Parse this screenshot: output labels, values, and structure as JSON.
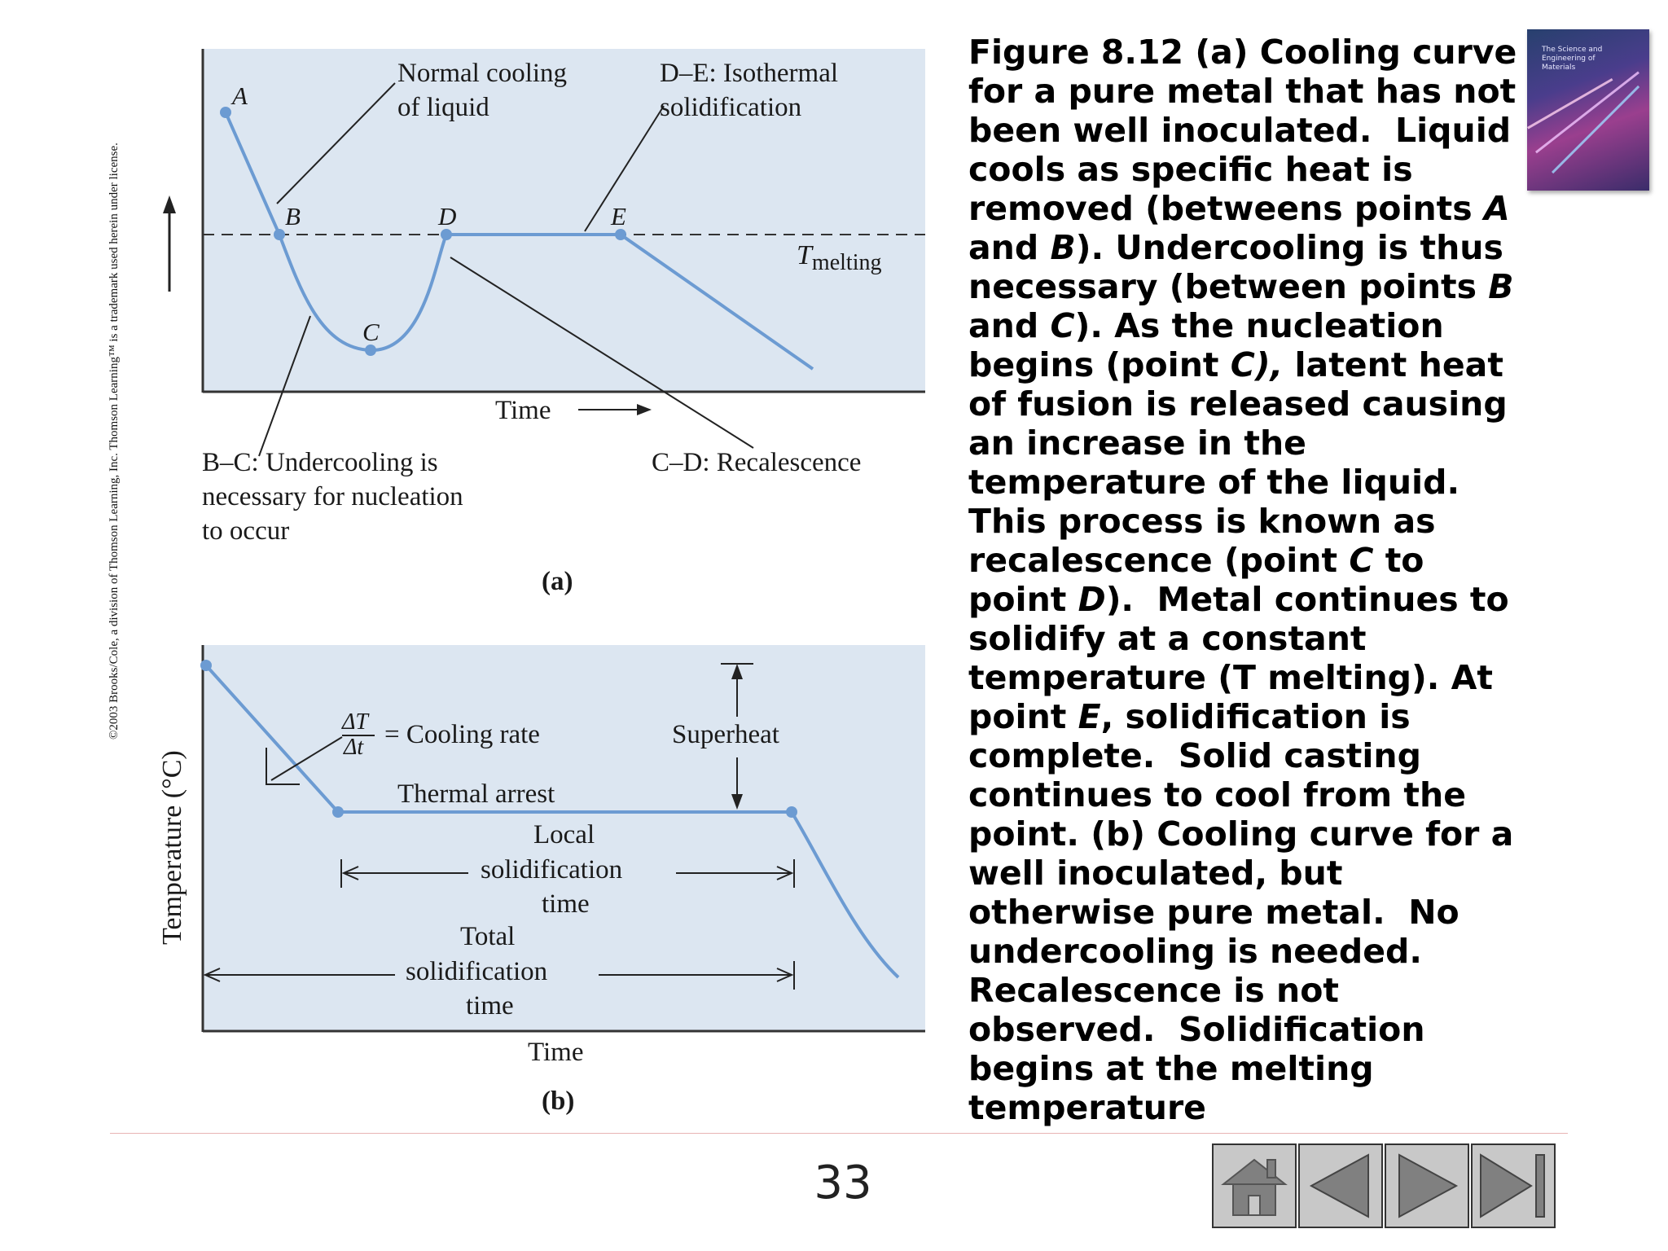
{
  "copyright": "©2003 Brooks/Cole, a division of Thomson Learning, Inc.  Thomson Learning™ is a trademark used herein under license.",
  "panel_a": {
    "point_labels": [
      "A",
      "B",
      "C",
      "D",
      "E"
    ],
    "normal_cooling": [
      "Normal cooling",
      "of liquid"
    ],
    "isothermal": [
      "D–E: Isothermal",
      "solidification"
    ],
    "t_melting_main": "T",
    "t_melting_sub": "melting",
    "time_label": "Time",
    "undercooling": [
      "B–C: Undercooling is",
      "necessary for nucleation",
      "to occur"
    ],
    "recalescence": "C–D: Recalescence",
    "panel_label": "(a)"
  },
  "panel_b": {
    "cooling_rate_num": "ΔT",
    "cooling_rate_den": "Δt",
    "cooling_rate_text": "= Cooling rate",
    "superheat": "Superheat",
    "thermal_arrest": "Thermal arrest",
    "local_time": [
      "Local",
      "solidification",
      "time"
    ],
    "total_time": [
      "Total",
      "solidification",
      "time"
    ],
    "y_label": "Temperature (°C)",
    "x_label": "Time",
    "panel_label": "(b)"
  },
  "caption": [
    {
      "t": "Figure 8.12 (a) Cooling curve for a pure metal that has not been well inoculated.  Liquid cools as specific heat is removed (betweens points "
    },
    {
      "t": "A",
      "i": true
    },
    {
      "t": " and "
    },
    {
      "t": "B",
      "i": true
    },
    {
      "t": "). Undercooling is thus necessary (between points "
    },
    {
      "t": "B",
      "i": true
    },
    {
      "t": " and "
    },
    {
      "t": "C",
      "i": true
    },
    {
      "t": "). As the nucleation begins (point "
    },
    {
      "t": "C),",
      "i": true
    },
    {
      "t": " latent heat of fusion is released causing an increase in the temperature of the liquid. This process is known as recalescence (point "
    },
    {
      "t": "C",
      "i": true
    },
    {
      "t": " to point "
    },
    {
      "t": "D",
      "i": true
    },
    {
      "t": ").  Metal continues to solidify at a constant temperature (T melting). At point "
    },
    {
      "t": "E",
      "i": true
    },
    {
      "t": ", solidification is complete.  Solid casting continues to cool from the point. (b) Cooling curve for a well inoculated, but otherwise pure metal.  No undercooling is needed. Recalescence is not observed.  Solidification begins at the melting temperature"
    }
  ],
  "book_cover_text": "The Science and Engineering of Materials",
  "page_number": "33",
  "nav": [
    "home-button",
    "previous-button",
    "next-button",
    "last-button"
  ],
  "colors": {
    "plot_bg": "#dce6f1",
    "curve": "#6c9bd2"
  }
}
